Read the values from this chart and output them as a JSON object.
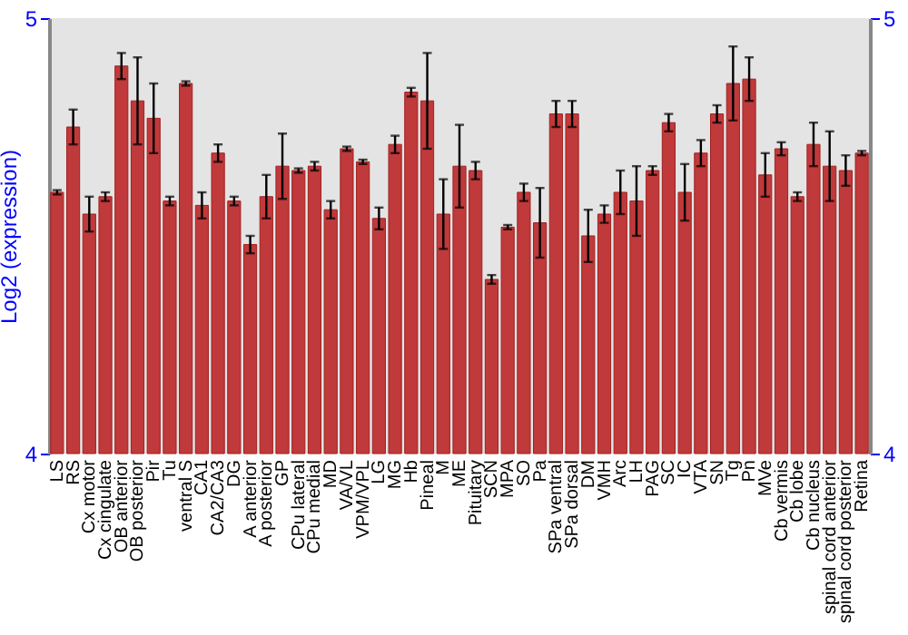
{
  "chart_data": {
    "type": "bar",
    "ylabel": "Log2 (expression)",
    "categories": [
      "LS",
      "RS",
      "Cx motor",
      "Cx cingulate",
      "OB anterior",
      "OB posterior",
      "Pir",
      "Tu",
      "ventral S",
      "CA1",
      "CA2/CA3",
      "DG",
      "A anterior",
      "A posterior",
      "GP",
      "CPu lateral",
      "CPu medial",
      "MD",
      "VA/VL",
      "VPM/VPL",
      "LG",
      "MG",
      "Hb",
      "Pineal",
      "M",
      "ME",
      "Pituitary",
      "SCN",
      "MPA",
      "SO",
      "Pa",
      "SPa ventral",
      "SPa dorsal",
      "DM",
      "VMH",
      "Arc",
      "LH",
      "PAG",
      "SC",
      "IC",
      "VTA",
      "SN",
      "Tg",
      "Pn",
      "MVe",
      "Cb vermis",
      "Cb lobe",
      "Cb nucleus",
      "spinal cord anterior",
      "spinal cord posterior",
      "Retina"
    ],
    "values": [
      4.6,
      4.75,
      4.55,
      4.59,
      4.89,
      4.81,
      4.77,
      4.58,
      4.85,
      4.57,
      4.69,
      4.58,
      4.48,
      4.59,
      4.66,
      4.65,
      4.66,
      4.56,
      4.7,
      4.67,
      4.54,
      4.71,
      4.83,
      4.81,
      4.55,
      4.66,
      4.65,
      4.4,
      4.52,
      4.6,
      4.53,
      4.78,
      4.78,
      4.5,
      4.55,
      4.6,
      4.58,
      4.65,
      4.76,
      4.6,
      4.69,
      4.78,
      4.85,
      4.86,
      4.64,
      4.7,
      4.59,
      4.71,
      4.66,
      4.65,
      4.69
    ],
    "errors": [
      0.005,
      0.04,
      0.04,
      0.01,
      0.03,
      0.1,
      0.08,
      0.01,
      0.005,
      0.03,
      0.02,
      0.01,
      0.02,
      0.05,
      0.075,
      0.005,
      0.01,
      0.02,
      0.005,
      0.005,
      0.025,
      0.02,
      0.01,
      0.11,
      0.08,
      0.095,
      0.02,
      0.01,
      0.005,
      0.02,
      0.08,
      0.03,
      0.03,
      0.06,
      0.02,
      0.05,
      0.08,
      0.01,
      0.02,
      0.065,
      0.03,
      0.02,
      0.085,
      0.05,
      0.05,
      0.015,
      0.01,
      0.05,
      0.08,
      0.035,
      0.005
    ],
    "color": "#c0393b",
    "ylim": [
      4,
      5
    ],
    "yticks": [
      4,
      5
    ],
    "y2lim": [
      4,
      5
    ],
    "y2ticks": [
      4,
      5
    ],
    "grid": false
  }
}
